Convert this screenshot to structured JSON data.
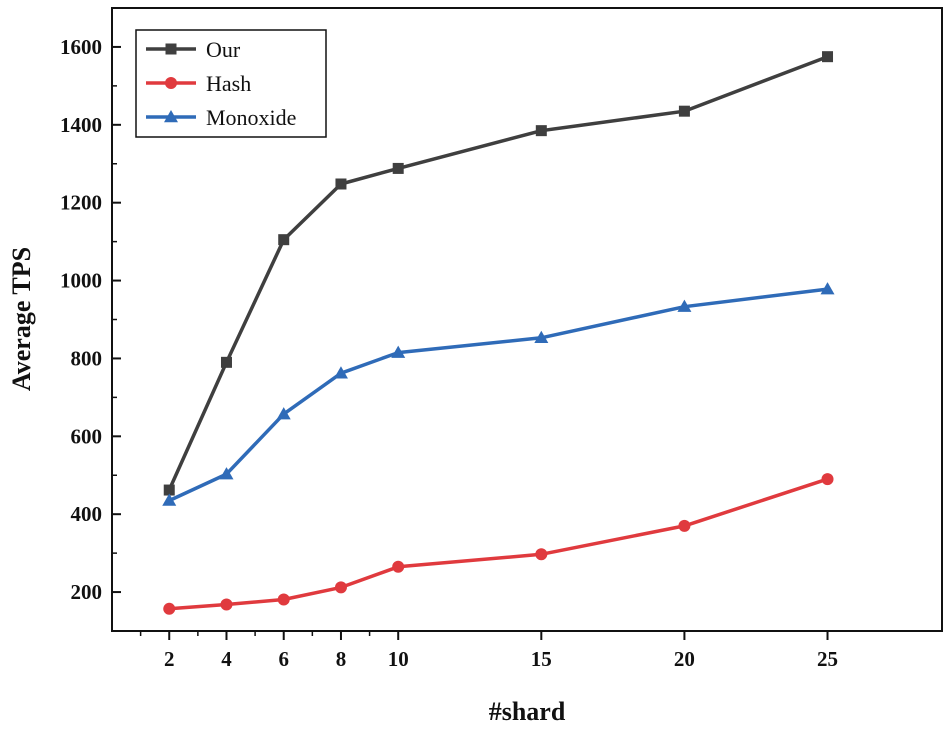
{
  "chart_data": {
    "type": "line",
    "title": "",
    "xlabel": "#shard",
    "ylabel": "Average TPS",
    "categories": [
      "2",
      "4",
      "6",
      "8",
      "10",
      "15",
      "20",
      "25"
    ],
    "x": [
      2,
      4,
      6,
      8,
      10,
      15,
      20,
      25
    ],
    "yticks": [
      200,
      400,
      600,
      800,
      1000,
      1200,
      1400,
      1600
    ],
    "ylim": [
      100,
      1700
    ],
    "grid": false,
    "legend_position": "top-left",
    "series": [
      {
        "name": "Our",
        "color": "#3f3f3f",
        "marker": "square",
        "values": [
          462,
          790,
          1105,
          1248,
          1288,
          1385,
          1435,
          1575
        ]
      },
      {
        "name": "Hash",
        "color": "#e03a3e",
        "marker": "circle",
        "values": [
          157,
          168,
          181,
          212,
          265,
          297,
          370,
          490
        ]
      },
      {
        "name": "Monoxide",
        "color": "#2f6bb8",
        "marker": "triangle",
        "values": [
          435,
          503,
          657,
          762,
          815,
          853,
          933,
          978
        ]
      }
    ]
  }
}
